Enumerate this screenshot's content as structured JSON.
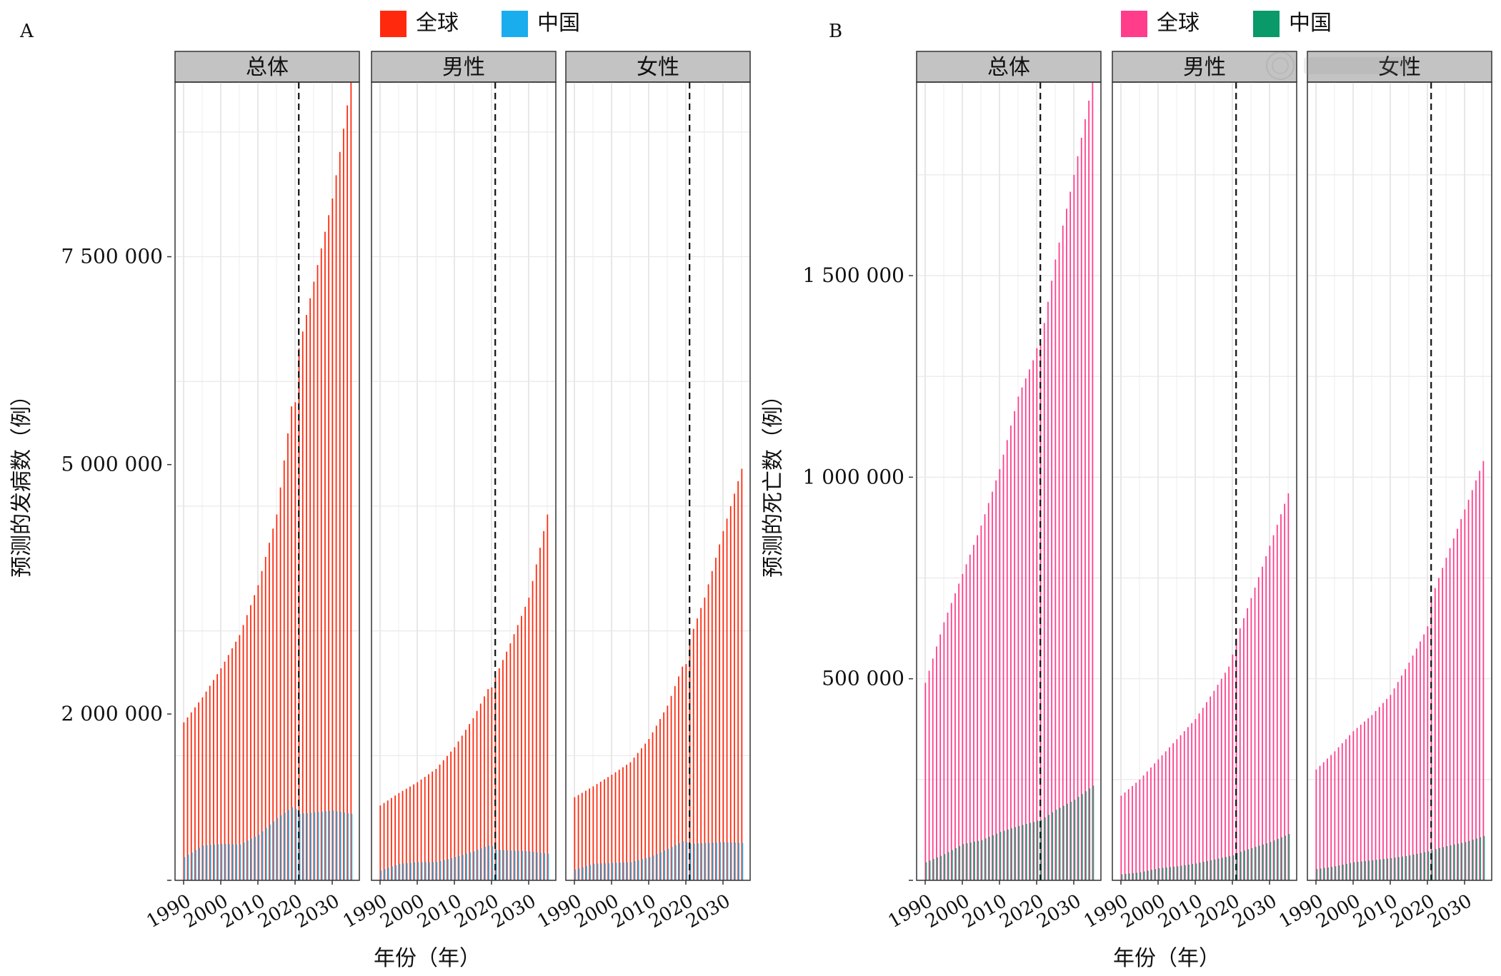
{
  "figure": {
    "watermark": "中华医学会"
  },
  "chart_data": [
    {
      "type": "bar",
      "panel_tag": "A",
      "ylabel": "预测的发病数（例）",
      "xlabel": "年份（年）",
      "y_ticks": [
        "2 000 000",
        "5 000 000",
        "7 500 000"
      ],
      "y_tick_values": [
        2000000,
        5000000,
        7500000
      ],
      "ylim": [
        0,
        9600000
      ],
      "x_ticks": [
        "1990",
        "2000",
        "2010",
        "2020",
        "2030"
      ],
      "x_tick_values": [
        1990,
        2000,
        2010,
        2020,
        2030
      ],
      "x_range": [
        1990,
        2035
      ],
      "vline_year": 2021,
      "grid": true,
      "legend": {
        "position": "top",
        "entries": [
          {
            "label": "全球",
            "color": "#FF2A0E"
          },
          {
            "label": "中国",
            "color": "#1AADEE"
          }
        ]
      },
      "facets": [
        {
          "label": "总体",
          "series": [
            {
              "name": "全球",
              "color": "#FF2A0E",
              "keyframes": [
                [
                  1990,
                  1900000
                ],
                [
                  1995,
                  2200000
                ],
                [
                  2000,
                  2550000
                ],
                [
                  2005,
                  2950000
                ],
                [
                  2010,
                  3550000
                ],
                [
                  2015,
                  4400000
                ],
                [
                  2019,
                  5700000
                ],
                [
                  2020,
                  5750000
                ],
                [
                  2021,
                  6400000
                ],
                [
                  2025,
                  7200000
                ],
                [
                  2030,
                  8200000
                ],
                [
                  2035,
                  9600000
                ]
              ]
            },
            {
              "name": "中国",
              "color": "#1AADEE",
              "keyframes": [
                [
                  1990,
                  280000
                ],
                [
                  1995,
                  420000
                ],
                [
                  2000,
                  440000
                ],
                [
                  2005,
                  430000
                ],
                [
                  2010,
                  550000
                ],
                [
                  2015,
                  750000
                ],
                [
                  2019,
                  880000
                ],
                [
                  2020,
                  860000
                ],
                [
                  2021,
                  800000
                ],
                [
                  2025,
                  820000
                ],
                [
                  2030,
                  840000
                ],
                [
                  2035,
                  800000
                ]
              ]
            }
          ]
        },
        {
          "label": "男性",
          "series": [
            {
              "name": "全球",
              "color": "#FF2A0E",
              "keyframes": [
                [
                  1990,
                  900000
                ],
                [
                  1995,
                  1050000
                ],
                [
                  2000,
                  1180000
                ],
                [
                  2005,
                  1340000
                ],
                [
                  2010,
                  1600000
                ],
                [
                  2015,
                  1950000
                ],
                [
                  2019,
                  2300000
                ],
                [
                  2020,
                  2320000
                ],
                [
                  2021,
                  2450000
                ],
                [
                  2025,
                  2850000
                ],
                [
                  2030,
                  3400000
                ],
                [
                  2035,
                  4400000
                ]
              ]
            },
            {
              "name": "中国",
              "color": "#1AADEE",
              "keyframes": [
                [
                  1990,
                  120000
                ],
                [
                  1995,
                  200000
                ],
                [
                  2000,
                  220000
                ],
                [
                  2005,
                  220000
                ],
                [
                  2010,
                  280000
                ],
                [
                  2015,
                  350000
                ],
                [
                  2019,
                  420000
                ],
                [
                  2020,
                  410000
                ],
                [
                  2021,
                  370000
                ],
                [
                  2025,
                  360000
                ],
                [
                  2030,
                  350000
                ],
                [
                  2035,
                  320000
                ]
              ]
            }
          ]
        },
        {
          "label": "女性",
          "series": [
            {
              "name": "全球",
              "color": "#FF2A0E",
              "keyframes": [
                [
                  1990,
                  1000000
                ],
                [
                  1995,
                  1130000
                ],
                [
                  2000,
                  1270000
                ],
                [
                  2005,
                  1420000
                ],
                [
                  2010,
                  1700000
                ],
                [
                  2015,
                  2100000
                ],
                [
                  2019,
                  2570000
                ],
                [
                  2020,
                  2600000
                ],
                [
                  2021,
                  2900000
                ],
                [
                  2025,
                  3400000
                ],
                [
                  2030,
                  4200000
                ],
                [
                  2035,
                  4950000
                ]
              ]
            },
            {
              "name": "中国",
              "color": "#1AADEE",
              "keyframes": [
                [
                  1990,
                  130000
                ],
                [
                  1995,
                  200000
                ],
                [
                  2000,
                  210000
                ],
                [
                  2005,
                  220000
                ],
                [
                  2010,
                  280000
                ],
                [
                  2015,
                  380000
                ],
                [
                  2019,
                  470000
                ],
                [
                  2020,
                  460000
                ],
                [
                  2021,
                  440000
                ],
                [
                  2025,
                  450000
                ],
                [
                  2030,
                  460000
                ],
                [
                  2035,
                  450000
                ]
              ]
            }
          ]
        }
      ]
    },
    {
      "type": "bar",
      "panel_tag": "B",
      "ylabel": "预测的死亡数（例）",
      "xlabel": "年份（年）",
      "y_ticks": [
        "500 000",
        "1 000 000",
        "1 500 000"
      ],
      "y_tick_values": [
        500000,
        1000000,
        1500000
      ],
      "ylim": [
        0,
        1980000
      ],
      "x_ticks": [
        "1990",
        "2000",
        "2010",
        "2020",
        "2030"
      ],
      "x_tick_values": [
        1990,
        2000,
        2010,
        2020,
        2030
      ],
      "x_range": [
        1990,
        2035
      ],
      "vline_year": 2021,
      "grid": true,
      "legend": {
        "position": "top",
        "entries": [
          {
            "label": "全球",
            "color": "#FF3D8B"
          },
          {
            "label": "中国",
            "color": "#0A9968"
          }
        ]
      },
      "facets": [
        {
          "label": "总体",
          "series": [
            {
              "name": "全球",
              "color": "#FF3D8B",
              "keyframes": [
                [
                  1990,
                  490000
                ],
                [
                  1995,
                  640000
                ],
                [
                  2000,
                  760000
                ],
                [
                  2005,
                  880000
                ],
                [
                  2010,
                  1020000
                ],
                [
                  2015,
                  1200000
                ],
                [
                  2019,
                  1290000
                ],
                [
                  2020,
                  1320000
                ],
                [
                  2021,
                  1330000
                ],
                [
                  2025,
                  1540000
                ],
                [
                  2030,
                  1750000
                ],
                [
                  2035,
                  1980000
                ]
              ]
            },
            {
              "name": "中国",
              "color": "#0A9968",
              "keyframes": [
                [
                  1990,
                  45000
                ],
                [
                  1995,
                  65000
                ],
                [
                  2000,
                  90000
                ],
                [
                  2005,
                  100000
                ],
                [
                  2010,
                  120000
                ],
                [
                  2015,
                  135000
                ],
                [
                  2019,
                  145000
                ],
                [
                  2020,
                  148000
                ],
                [
                  2021,
                  150000
                ],
                [
                  2025,
                  175000
                ],
                [
                  2030,
                  200000
                ],
                [
                  2035,
                  235000
                ]
              ]
            }
          ]
        },
        {
          "label": "男性",
          "series": [
            {
              "name": "全球",
              "color": "#FF3D8B",
              "keyframes": [
                [
                  1990,
                  210000
                ],
                [
                  1995,
                  250000
                ],
                [
                  2000,
                  300000
                ],
                [
                  2005,
                  350000
                ],
                [
                  2010,
                  400000
                ],
                [
                  2015,
                  470000
                ],
                [
                  2019,
                  530000
                ],
                [
                  2020,
                  560000
                ],
                [
                  2021,
                  600000
                ],
                [
                  2025,
                  700000
                ],
                [
                  2030,
                  830000
                ],
                [
                  2035,
                  960000
                ]
              ]
            },
            {
              "name": "中国",
              "color": "#0A9968",
              "keyframes": [
                [
                  1990,
                  15000
                ],
                [
                  1995,
                  20000
                ],
                [
                  2000,
                  30000
                ],
                [
                  2005,
                  35000
                ],
                [
                  2010,
                  42000
                ],
                [
                  2015,
                  52000
                ],
                [
                  2019,
                  60000
                ],
                [
                  2020,
                  62000
                ],
                [
                  2021,
                  68000
                ],
                [
                  2025,
                  80000
                ],
                [
                  2030,
                  95000
                ],
                [
                  2035,
                  115000
                ]
              ]
            }
          ]
        },
        {
          "label": "女性",
          "series": [
            {
              "name": "全球",
              "color": "#FF3D8B",
              "keyframes": [
                [
                  1990,
                  275000
                ],
                [
                  1995,
                  320000
                ],
                [
                  2000,
                  370000
                ],
                [
                  2005,
                  410000
                ],
                [
                  2010,
                  460000
                ],
                [
                  2015,
                  540000
                ],
                [
                  2019,
                  610000
                ],
                [
                  2020,
                  630000
                ],
                [
                  2021,
                  700000
                ],
                [
                  2025,
                  800000
                ],
                [
                  2030,
                  920000
                ],
                [
                  2035,
                  1040000
                ]
              ]
            },
            {
              "name": "中国",
              "color": "#0A9968",
              "keyframes": [
                [
                  1990,
                  28000
                ],
                [
                  1995,
                  35000
                ],
                [
                  2000,
                  45000
                ],
                [
                  2005,
                  50000
                ],
                [
                  2010,
                  55000
                ],
                [
                  2015,
                  62000
                ],
                [
                  2019,
                  70000
                ],
                [
                  2020,
                  72000
                ],
                [
                  2021,
                  75000
                ],
                [
                  2025,
                  85000
                ],
                [
                  2030,
                  95000
                ],
                [
                  2035,
                  110000
                ]
              ]
            }
          ]
        }
      ]
    }
  ]
}
